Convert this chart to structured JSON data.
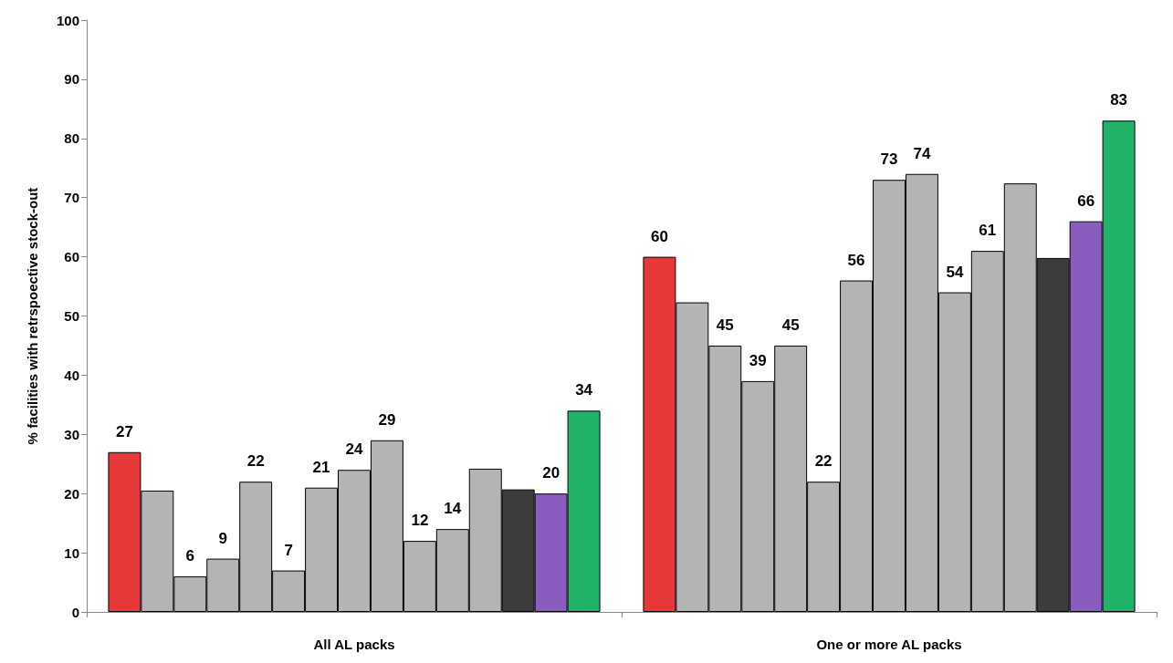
{
  "chart_data": {
    "type": "bar",
    "ylabel": "% facilities with retrspoective stock-out",
    "categories": [
      "All AL packs",
      "One or more AL packs"
    ],
    "ylim": [
      0,
      100
    ],
    "yticks": [
      0,
      10,
      20,
      30,
      40,
      50,
      60,
      70,
      80,
      90,
      100
    ],
    "grid": false,
    "series": [
      {
        "color": "#e8393a",
        "values": [
          27,
          60
        ],
        "value_labels": [
          "27",
          "60"
        ]
      },
      {
        "color": "#b4b4b4",
        "values": [
          20.5,
          52.3
        ],
        "value_labels": [
          null,
          null
        ]
      },
      {
        "color": "#b4b4b4",
        "values": [
          6,
          45
        ],
        "value_labels": [
          "6",
          "45"
        ]
      },
      {
        "color": "#b4b4b4",
        "values": [
          9,
          39
        ],
        "value_labels": [
          "9",
          "39"
        ]
      },
      {
        "color": "#b4b4b4",
        "values": [
          22,
          45
        ],
        "value_labels": [
          "22",
          "45"
        ]
      },
      {
        "color": "#b4b4b4",
        "values": [
          7,
          22
        ],
        "value_labels": [
          "7",
          "22"
        ]
      },
      {
        "color": "#b4b4b4",
        "values": [
          21,
          56
        ],
        "value_labels": [
          "21",
          "56"
        ]
      },
      {
        "color": "#b4b4b4",
        "values": [
          24,
          73
        ],
        "value_labels": [
          "24",
          "73"
        ]
      },
      {
        "color": "#b4b4b4",
        "values": [
          29,
          74
        ],
        "value_labels": [
          "29",
          "74"
        ]
      },
      {
        "color": "#b4b4b4",
        "values": [
          12,
          54
        ],
        "value_labels": [
          "12",
          "54"
        ]
      },
      {
        "color": "#b4b4b4",
        "values": [
          14,
          61
        ],
        "value_labels": [
          "14",
          "61"
        ]
      },
      {
        "color": "#b4b4b4",
        "values": [
          24.2,
          72.4
        ],
        "value_labels": [
          null,
          null
        ]
      },
      {
        "color": "#3c3c3c",
        "values": [
          20.7,
          59.8
        ],
        "value_labels": [
          null,
          null
        ]
      },
      {
        "color": "#8a5cc0",
        "values": [
          20,
          66
        ],
        "value_labels": [
          "20",
          "66"
        ]
      },
      {
        "color": "#22b36a",
        "values": [
          34,
          83
        ],
        "value_labels": [
          "34",
          "83"
        ]
      }
    ]
  }
}
